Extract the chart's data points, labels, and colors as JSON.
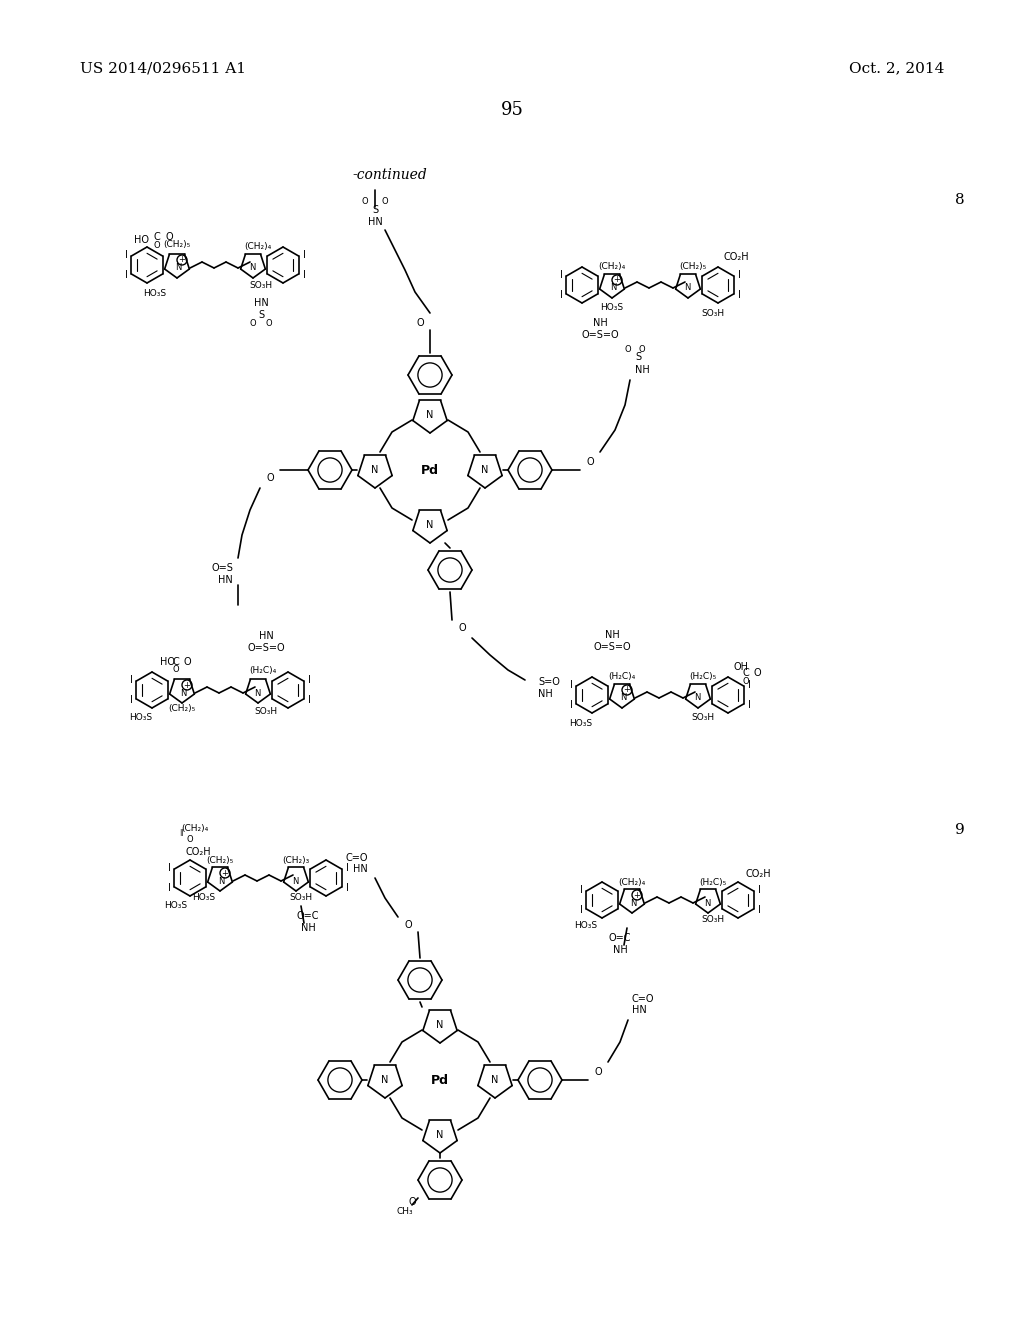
{
  "page_number": "95",
  "left_header": "US 2014/0296511 A1",
  "right_header": "Oct. 2, 2014",
  "continued_text": "-continued",
  "compound_8_label": "8",
  "compound_9_label": "9",
  "background_color": "#ffffff",
  "text_color": "#000000",
  "header_fontsize": 11,
  "page_num_fontsize": 13,
  "continued_fontsize": 10,
  "label_fontsize": 11
}
